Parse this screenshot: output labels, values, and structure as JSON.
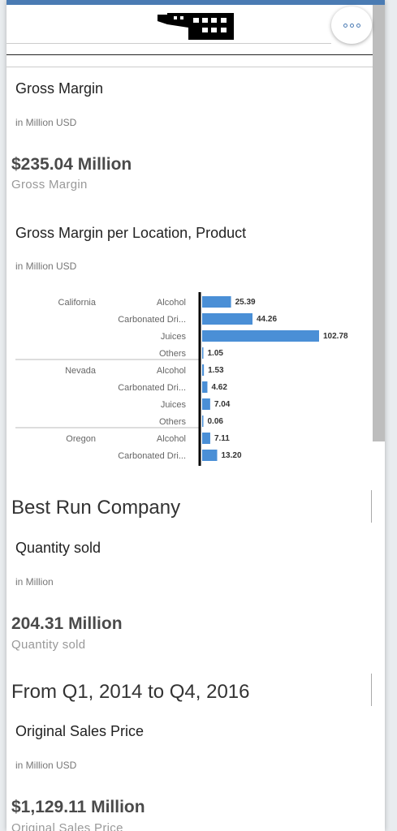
{
  "header": {
    "more_label": "More actions"
  },
  "gross_margin_tile": {
    "title": "Gross Margin",
    "unit": "in Million USD",
    "value": "$235.04 Million",
    "caption": "Gross Margin"
  },
  "gm_chart_tile": {
    "title": "Gross Margin per Location, Product",
    "unit": "in Million USD"
  },
  "chart_data": {
    "type": "bar",
    "orientation": "horizontal",
    "color": "#4a8fd6",
    "groups": [
      {
        "location": "California",
        "products": [
          "Alcohol",
          "Carbonated Dri...",
          "Juices",
          "Others"
        ],
        "values": [
          25.39,
          44.26,
          102.78,
          1.05
        ],
        "labels": [
          "25.39",
          "44.26",
          "102.78",
          "1.05"
        ]
      },
      {
        "location": "Nevada",
        "products": [
          "Alcohol",
          "Carbonated Dri...",
          "Juices",
          "Others"
        ],
        "values": [
          1.53,
          4.62,
          7.04,
          0.06
        ],
        "labels": [
          "1.53",
          "4.62",
          "7.04",
          "0.06"
        ]
      },
      {
        "location": "Oregon",
        "products": [
          "Alcohol",
          "Carbonated Dri..."
        ],
        "values": [
          7.11,
          13.2
        ],
        "labels": [
          "7.11",
          "13.20"
        ]
      }
    ]
  },
  "section_company": {
    "title": "Best Run Company"
  },
  "quantity_tile": {
    "title": "Quantity sold",
    "unit": "in Million",
    "value": "204.31 Million",
    "caption": "Quantity sold"
  },
  "section_period": {
    "title": "From Q1, 2014 to Q4, 2016"
  },
  "sales_price_tile": {
    "title": "Original Sales Price",
    "unit": "in Million USD",
    "value": "$1,129.11 Million",
    "caption": "Original Sales Price"
  }
}
